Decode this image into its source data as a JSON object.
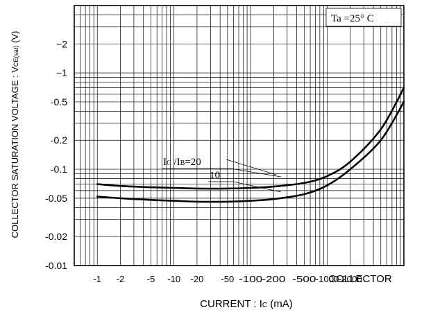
{
  "chart_data": {
    "type": "line",
    "xscale": "log",
    "yscale": "log",
    "x_ticks": [
      -1,
      -2,
      -5,
      -10,
      -20,
      -50,
      -100,
      -200,
      -500,
      -1000,
      -2000
    ],
    "x_tick_labels": [
      "-1",
      "-2",
      "-5",
      "-10",
      "-20",
      "-50",
      "-100",
      "-200",
      "-500",
      "-1000",
      "-2000"
    ],
    "xlabel_line1": "COLLECTOR",
    "xlabel_line2_main": "CURRENT : I",
    "xlabel_line2_sub": "C",
    "xlabel_line2_unit": " (mA)",
    "y_ticks": [
      -0.01,
      -0.02,
      -0.05,
      -0.1,
      -0.2,
      -0.5,
      -1,
      -2
    ],
    "y_tick_labels": [
      "-0.01",
      "-0.02",
      "-0.05",
      "-0.1",
      "-0.2",
      "-0.5",
      "−1",
      "−2"
    ],
    "ylabel_main": "COLLECTOR SATURATION VOLTAGE : V",
    "ylabel_sub": "CE(sat)",
    "ylabel_unit": " (V)",
    "condition": "Ta =25° C",
    "series_label_prefix_I1": "I",
    "series_label_sub1": "C",
    "series_label_slash": " /I",
    "series_label_sub2": "B",
    "series_label_value": "=20",
    "series": [
      {
        "name": "=20",
        "x": [
          -1,
          -2,
          -5,
          -10,
          -20,
          -50,
          -100,
          -200,
          -500,
          -1000,
          -2000,
          -5000,
          -10000
        ],
        "y": [
          -0.07,
          -0.067,
          -0.065,
          -0.064,
          -0.063,
          -0.063,
          -0.064,
          -0.066,
          -0.072,
          -0.085,
          -0.12,
          -0.26,
          -0.7
        ]
      },
      {
        "name": "10",
        "x": [
          -1,
          -2,
          -5,
          -10,
          -20,
          -50,
          -100,
          -200,
          -500,
          -1000,
          -2000,
          -5000,
          -10000
        ],
        "y": [
          -0.052,
          -0.05,
          -0.048,
          -0.047,
          -0.046,
          -0.046,
          -0.047,
          -0.049,
          -0.055,
          -0.068,
          -0.1,
          -0.2,
          -0.5
        ]
      }
    ]
  }
}
